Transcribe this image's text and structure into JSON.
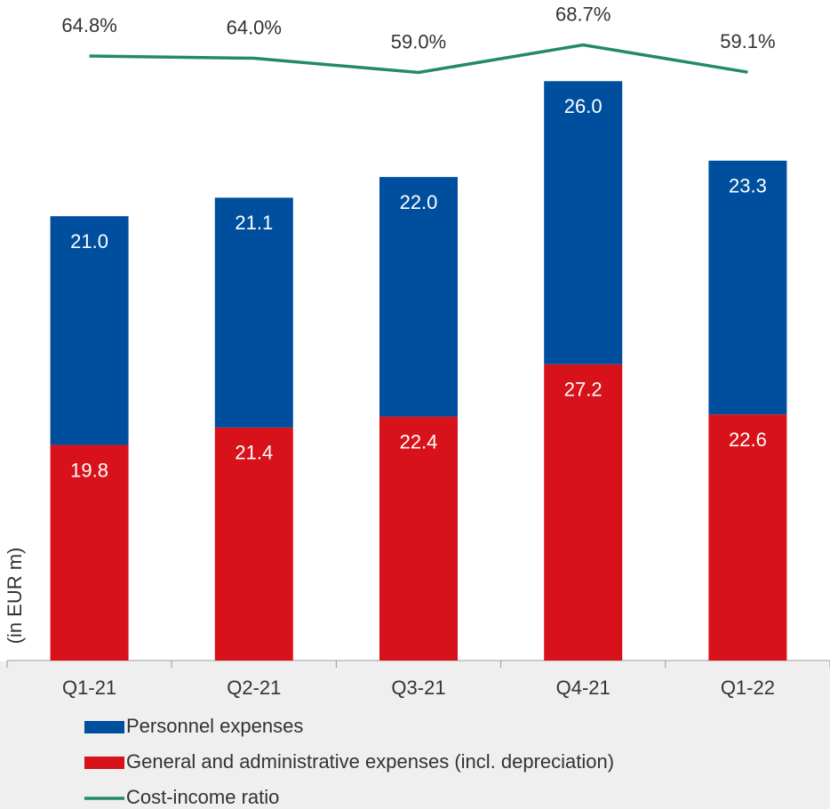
{
  "chart_data": {
    "type": "bar-line",
    "y_label": "(in EUR m)",
    "categories": [
      "Q1-21",
      "Q2-21",
      "Q3-21",
      "Q4-21",
      "Q1-22"
    ],
    "stacked": true,
    "ylim": [
      0,
      60
    ],
    "y2lim": [
      -148,
      82
    ],
    "series": [
      {
        "name": "General and administrative expenses (incl. depreciation)",
        "type": "bar",
        "color": "#d7121a",
        "values": [
          19.8,
          21.4,
          22.4,
          27.2,
          22.6
        ],
        "value_labels": [
          "19.8",
          "21.4",
          "22.4",
          "27.2",
          "22.6"
        ]
      },
      {
        "name": "Personnel expenses",
        "type": "bar",
        "color": "#004f9f",
        "values": [
          21.0,
          21.1,
          22.0,
          26.0,
          23.3
        ],
        "value_labels": [
          "21.0",
          "21.1",
          "22.0",
          "26.0",
          "23.3"
        ]
      },
      {
        "name": "Cost-income ratio",
        "type": "line",
        "axis": "y2",
        "color": "#23896a",
        "values": [
          64.8,
          64.0,
          59.0,
          68.7,
          59.1
        ],
        "value_labels": [
          "64.8%",
          "64.0%",
          "59.0%",
          "68.7%",
          "59.1%"
        ]
      }
    ],
    "legend_order": [
      1,
      0,
      2
    ]
  }
}
